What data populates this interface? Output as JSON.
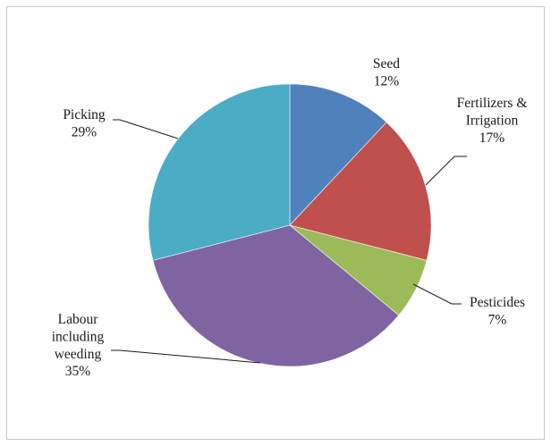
{
  "chart_data": {
    "type": "pie",
    "slices": [
      {
        "name": "Seed",
        "label_lines": [
          "Seed"
        ],
        "value": 12,
        "value_label": "12%",
        "color": "#4f81bd"
      },
      {
        "name": "Fertilizers & Irrigation",
        "label_lines": [
          "Fertilizers &",
          "Irrigation"
        ],
        "value": 17,
        "value_label": "17%",
        "color": "#c0504d"
      },
      {
        "name": "Pesticides",
        "label_lines": [
          "Pesticides"
        ],
        "value": 7,
        "value_label": "7%",
        "color": "#9bbb59"
      },
      {
        "name": "Labour including weeding",
        "label_lines": [
          "Labour",
          "including",
          "weeding"
        ],
        "value": 35,
        "value_label": "35%",
        "color": "#8064a2"
      },
      {
        "name": "Picking",
        "label_lines": [
          "Picking"
        ],
        "value": 29,
        "value_label": "29%",
        "color": "#4bacc6"
      }
    ]
  }
}
